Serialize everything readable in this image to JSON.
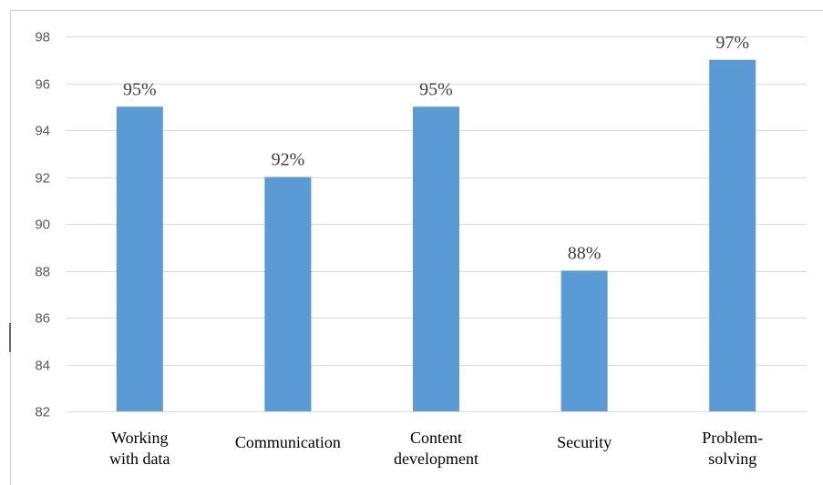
{
  "chart_data": {
    "type": "bar",
    "categories": [
      [
        "Working",
        "with data"
      ],
      [
        "Communication"
      ],
      [
        "Content",
        "development"
      ],
      [
        "Security"
      ],
      [
        "Problem-",
        "solving"
      ]
    ],
    "values": [
      95,
      92,
      95,
      88,
      97
    ],
    "data_labels": [
      "95%",
      "92%",
      "95%",
      "88%",
      "97%"
    ],
    "ylim": [
      82,
      98
    ],
    "yticks": [
      82,
      84,
      86,
      88,
      90,
      92,
      94,
      96,
      98
    ],
    "grid": true,
    "title": "",
    "xlabel": "",
    "ylabel": "",
    "bar_color": "#5b9bd5"
  }
}
